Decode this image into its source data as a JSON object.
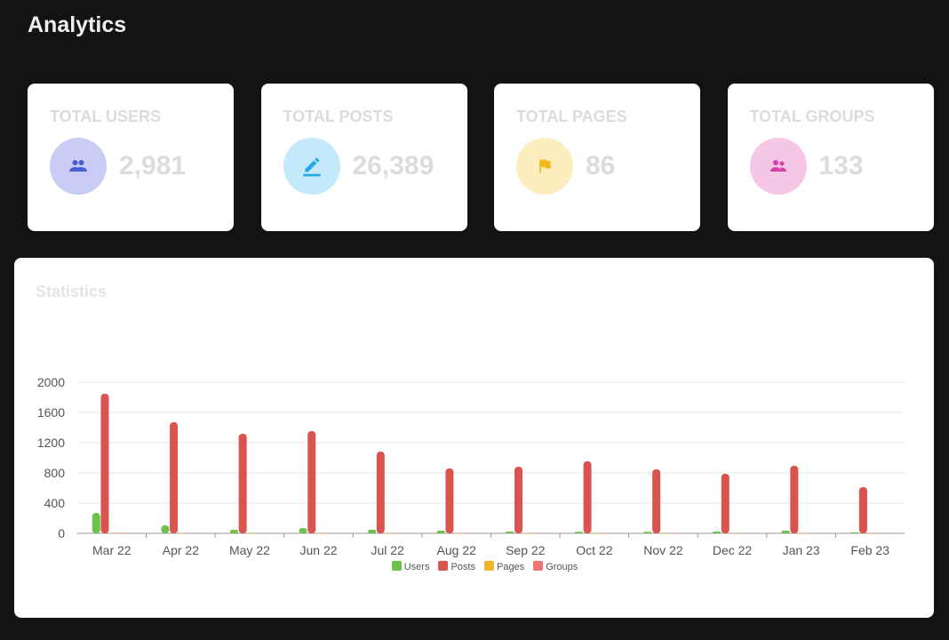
{
  "header": {
    "title": "Analytics"
  },
  "cards": [
    {
      "label": "TOTAL USERS",
      "value": "2,981",
      "icon": "users-icon",
      "bg": "#c9cdf5",
      "fg": "#4b5bd4"
    },
    {
      "label": "TOTAL POSTS",
      "value": "26,389",
      "icon": "pencil-icon",
      "bg": "#c4e9fb",
      "fg": "#2aa7e6"
    },
    {
      "label": "TOTAL PAGES",
      "value": "86",
      "icon": "flag-icon",
      "bg": "#fdeec0",
      "fg": "#f2b822"
    },
    {
      "label": "TOTAL GROUPS",
      "value": "133",
      "icon": "group-icon",
      "bg": "#f6c6e6",
      "fg": "#d63fa8"
    }
  ],
  "stats": {
    "title": "Statistics"
  },
  "chart_data": {
    "type": "bar",
    "categories": [
      "Mar 22",
      "Apr 22",
      "May 22",
      "Jun 22",
      "Jul 22",
      "Aug 22",
      "Sep 22",
      "Oct 22",
      "Nov 22",
      "Dec 22",
      "Jan 23",
      "Feb 23"
    ],
    "series": [
      {
        "name": "Users",
        "color": "#6cc24a",
        "values": [
          270,
          106,
          47,
          70,
          47,
          35,
          24,
          20,
          20,
          24,
          35,
          12
        ]
      },
      {
        "name": "Posts",
        "color": "#d9534f",
        "values": [
          1847,
          1470,
          1318,
          1353,
          1082,
          859,
          882,
          953,
          847,
          788,
          894,
          612
        ]
      },
      {
        "name": "Pages",
        "color": "#f0b429",
        "values": [
          5,
          3,
          2,
          2,
          2,
          2,
          2,
          2,
          2,
          2,
          2,
          1
        ]
      },
      {
        "name": "Groups",
        "color": "#f07575",
        "values": [
          6,
          4,
          3,
          3,
          3,
          3,
          3,
          3,
          3,
          3,
          3,
          2
        ]
      }
    ],
    "yticks": [
      0,
      400,
      800,
      1200,
      1600,
      2000
    ],
    "ylim": [
      0,
      2000
    ],
    "legend": "bottom"
  }
}
